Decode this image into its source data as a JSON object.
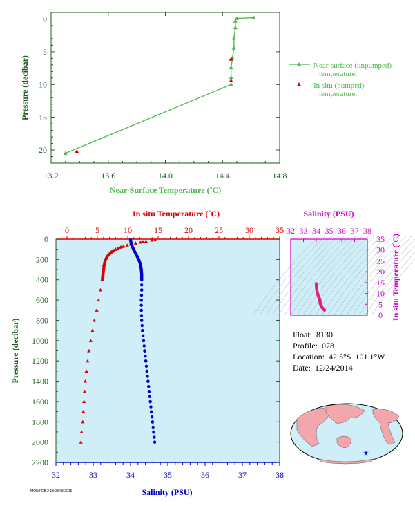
{
  "colors": {
    "green": "#4bb84b",
    "red": "#dd0000",
    "blue": "#0000cc",
    "magenta": "#cc00cc",
    "dark_green": "#1c5a1c",
    "panel_bg": "#cfeef8",
    "land": "#f3a6ab"
  },
  "info": {
    "float": "Float:  8130",
    "profile": "Profile:  078",
    "location": "Location:  42.5°S  101.1°W",
    "date": "Date:  12/24/2014"
  },
  "footer_text": "MON FEB 2 18:08:08 2015",
  "chart_data": [
    {
      "type": "line",
      "name": "near-surface",
      "xlabel": "Near-Surface Temperature (˚C)",
      "ylabel": "Pressure (decibar)",
      "xlim": [
        13.2,
        14.8
      ],
      "ylim": [
        22,
        -1
      ],
      "xticks": [
        "13.2",
        "13.6",
        "14.0",
        "14.4",
        "14.8"
      ],
      "yticks": [
        "0",
        "5",
        "10",
        "15",
        "20"
      ],
      "legend": [
        {
          "line1": "Near-surface (unpumped)",
          "line2": "temperature."
        },
        {
          "line1": "In situ (pumped)",
          "line2": "temperature."
        }
      ],
      "series": [
        {
          "name": "Near-surface (unpumped) temperature.",
          "x": [
            14.62,
            14.5,
            14.49,
            14.49,
            14.48,
            14.48,
            14.47,
            14.46,
            14.46,
            14.46,
            13.3
          ],
          "y": [
            -0.2,
            -0.1,
            0.3,
            1.3,
            2.9,
            4.4,
            5.9,
            7.4,
            8.9,
            10.0,
            20.5
          ]
        },
        {
          "name": "In situ (pumped) temperature.",
          "x": [
            14.46,
            14.46,
            13.38
          ],
          "y": [
            6.1,
            9.4,
            20.2
          ]
        }
      ]
    },
    {
      "type": "scatter",
      "name": "profile",
      "x_top_label": "In situ Temperature (˚C)",
      "x_bottom_label": "Salinity (PSU)",
      "ylabel": "Pressure (decibar)",
      "temp_lim": [
        0,
        35
      ],
      "sal_lim": [
        32,
        38
      ],
      "ylim": [
        2200,
        0
      ],
      "temp_ticks": [
        "0",
        "5",
        "10",
        "15",
        "20",
        "25",
        "30",
        "35"
      ],
      "sal_ticks": [
        "32",
        "33",
        "34",
        "35",
        "36",
        "37",
        "38"
      ],
      "yticks": [
        "0",
        "200",
        "400",
        "600",
        "800",
        "1000",
        "1200",
        "1400",
        "1600",
        "1800",
        "2000",
        "2200"
      ],
      "temperature": {
        "pressure": [
          5,
          25,
          50,
          75,
          100,
          125,
          150,
          175,
          200,
          250,
          300,
          350,
          400,
          500,
          600,
          700,
          800,
          900,
          1000,
          1100,
          1200,
          1300,
          1400,
          1500,
          1600,
          1700,
          1800,
          1900,
          2000
        ],
        "values": [
          14.5,
          12.5,
          10.5,
          9.0,
          8.0,
          7.3,
          6.8,
          6.5,
          6.3,
          6.1,
          6.0,
          5.9,
          5.8,
          5.5,
          5.2,
          4.9,
          4.5,
          4.2,
          3.9,
          3.6,
          3.4,
          3.2,
          3.0,
          2.9,
          2.8,
          2.7,
          2.6,
          2.4,
          2.3
        ]
      },
      "salinity": {
        "pressure": [
          5,
          50,
          100,
          150,
          200,
          250,
          300,
          350,
          400,
          500,
          600,
          700,
          800,
          900,
          1000,
          1100,
          1200,
          1300,
          1400,
          1500,
          1600,
          1700,
          1800,
          1900,
          2000
        ],
        "values": [
          34.0,
          34.02,
          34.08,
          34.15,
          34.22,
          34.27,
          34.29,
          34.3,
          34.3,
          34.3,
          34.29,
          34.29,
          34.3,
          34.32,
          34.35,
          34.38,
          34.41,
          34.44,
          34.47,
          34.5,
          34.53,
          34.56,
          34.59,
          34.62,
          34.65
        ]
      }
    },
    {
      "type": "scatter",
      "name": "ts-diagram",
      "x_label": "Salinity (PSU)",
      "y_label": "In situ Temperature (˚C)",
      "sal_lim": [
        32,
        38
      ],
      "temp_lim": [
        0,
        35
      ],
      "sal_ticks": [
        "32",
        "33",
        "34",
        "35",
        "36",
        "37",
        "38"
      ],
      "temp_ticks": [
        "0",
        "5",
        "10",
        "15",
        "20",
        "25",
        "30",
        "35"
      ],
      "points": {
        "salinity": [
          34.0,
          34.02,
          34.08,
          34.15,
          34.22,
          34.27,
          34.29,
          34.3,
          34.3,
          34.32,
          34.38,
          34.45,
          34.55,
          34.65
        ],
        "temperature": [
          14.5,
          12.5,
          10.5,
          9.0,
          8.0,
          7.3,
          6.8,
          6.3,
          5.9,
          5.2,
          4.5,
          3.6,
          2.9,
          2.3
        ]
      }
    }
  ]
}
